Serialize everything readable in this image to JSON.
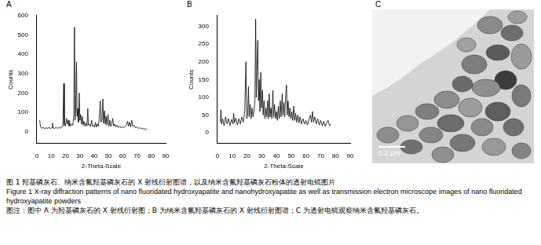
{
  "chart_data": [
    {
      "type": "line",
      "title": "A",
      "x_label": "2-Theta-Scale",
      "y_label": "Counts",
      "color": "#000000",
      "grid": false,
      "xlim": [
        0,
        90
      ],
      "xticks": [
        0,
        10,
        20,
        30,
        40,
        50,
        60,
        70,
        80,
        90
      ],
      "ylim": [
        -60,
        600
      ],
      "yticks": [
        0,
        100,
        200,
        300,
        400,
        500,
        600
      ],
      "x": [
        2,
        2.6,
        3.5,
        4.5,
        5.5,
        6.5,
        7.5,
        8.5,
        9.5,
        10.5,
        10.9,
        11.3,
        12.5,
        13.5,
        14.5,
        15.5,
        16.5,
        17.5,
        18.2,
        18.8,
        19.2,
        20,
        20.8,
        21.2,
        22,
        22.5,
        23.2,
        23.8,
        24.5,
        25.2,
        25.8,
        26.3,
        26.7,
        27.2,
        27.7,
        28.1,
        28.6,
        29,
        29.6,
        30.1,
        30.6,
        31.2,
        31.8,
        32.3,
        33,
        33.6,
        34.3,
        35,
        35.6,
        36,
        36.8,
        37.5,
        38.3,
        38.8,
        39.5,
        40.3,
        41,
        41.6,
        42.4,
        43,
        43.8,
        44.3,
        44.8,
        45.5,
        46.1,
        46.6,
        47.3,
        47.8,
        48.4,
        49,
        49.7,
        50.3,
        51,
        51.6,
        52.4,
        53,
        53.6,
        54.4,
        55.2,
        56,
        57,
        58,
        59,
        60,
        61,
        62,
        62.8,
        63.4,
        64,
        64.8,
        65.5,
        66.3,
        67,
        68,
        69,
        70,
        71,
        72,
        73,
        74,
        75,
        76,
        77
      ],
      "values": [
        60,
        25,
        18,
        25,
        15,
        22,
        18,
        24,
        16,
        22,
        45,
        20,
        18,
        25,
        17,
        23,
        19,
        28,
        30,
        250,
        35,
        30,
        70,
        40,
        60,
        30,
        45,
        30,
        40,
        35,
        90,
        540,
        60,
        120,
        360,
        80,
        120,
        50,
        200,
        60,
        90,
        40,
        80,
        35,
        55,
        30,
        45,
        30,
        120,
        35,
        40,
        28,
        60,
        30,
        35,
        25,
        50,
        25,
        40,
        30,
        90,
        160,
        50,
        60,
        170,
        45,
        110,
        40,
        80,
        35,
        90,
        30,
        60,
        28,
        45,
        70,
        30,
        40,
        25,
        35,
        22,
        30,
        20,
        28,
        22,
        30,
        40,
        55,
        30,
        50,
        25,
        60,
        28,
        35,
        20,
        25,
        18,
        22,
        15,
        20,
        12,
        18,
        10
      ]
    },
    {
      "type": "line",
      "title": "B",
      "x_label": "2-Theta-Scale",
      "y_label": "Counts",
      "color": "#000000",
      "grid": false,
      "xlim": [
        0,
        90
      ],
      "xticks": [
        0,
        10,
        20,
        30,
        40,
        50,
        60,
        70,
        80,
        90
      ],
      "ylim": [
        -30,
        330
      ],
      "yticks": [
        0,
        50,
        100,
        150,
        200,
        250,
        300
      ],
      "x": [
        2,
        2.3,
        2.8,
        3.5,
        4.5,
        5.5,
        6.5,
        7.5,
        8.5,
        9.5,
        10.5,
        11,
        11.5,
        12.5,
        13.5,
        14.5,
        15.5,
        16.5,
        17.5,
        18.5,
        19.3,
        19.8,
        20.5,
        21,
        21.5,
        22.2,
        22.8,
        23.5,
        24.1,
        24.8,
        25.4,
        25.9,
        26.3,
        26.8,
        27.3,
        27.8,
        28.3,
        28.8,
        29.4,
        29.9,
        30.5,
        31,
        31.6,
        32.2,
        32.8,
        33.4,
        34,
        34.5,
        35.1,
        35.6,
        36.3,
        36.9,
        37.6,
        38.1,
        38.7,
        39.3,
        40,
        40.6,
        41.3,
        41.9,
        42.6,
        43.2,
        43.9,
        44.4,
        45,
        45.6,
        46.2,
        46.8,
        47.3,
        47.9,
        48.5,
        49.1,
        49.7,
        50.4,
        51,
        51.7,
        52.3,
        53,
        53.7,
        54.5,
        55.3,
        56,
        57,
        58,
        59,
        60,
        61,
        62,
        63,
        63.7,
        64.4,
        65.1,
        66,
        67,
        68,
        69,
        70,
        71,
        72,
        73,
        74,
        75,
        76,
        77
      ],
      "values": [
        30,
        65,
        25,
        40,
        20,
        45,
        25,
        40,
        20,
        38,
        25,
        55,
        28,
        42,
        22,
        40,
        25,
        45,
        30,
        60,
        200,
        40,
        50,
        130,
        45,
        80,
        40,
        70,
        45,
        60,
        90,
        320,
        100,
        180,
        260,
        90,
        150,
        60,
        170,
        70,
        120,
        50,
        90,
        40,
        70,
        45,
        90,
        40,
        110,
        45,
        70,
        40,
        120,
        45,
        80,
        40,
        60,
        35,
        75,
        40,
        90,
        45,
        110,
        50,
        85,
        45,
        100,
        135,
        50,
        90,
        45,
        70,
        40,
        60,
        35,
        75,
        35,
        55,
        30,
        50,
        28,
        45,
        25,
        40,
        25,
        35,
        22,
        38,
        50,
        30,
        60,
        30,
        45,
        25,
        40,
        22,
        35,
        20,
        32,
        18,
        28,
        35,
        20,
        25
      ]
    }
  ],
  "panel_c": {
    "letter": "C",
    "scale_bar": "0.2 μm"
  },
  "caption": {
    "zh": "图 1   羟基磷灰石、纳米含氟羟基磷灰石的 X 射线衍射图谱，以及纳米含氟羟基磷灰石粉体的透射电镜图片",
    "en": "Figure 1   X-ray diffraction patterns of nano fluoridated hydroxyapatite and nanohydroxyapatite as well as transmission electron microscope images of nano fluoridated hydroxyapatite powders",
    "note": "图注：图中 A 为羟基磷灰石的 X 射线衍射图；B 为纳米含氟羟基磷灰石的 X 射线衍射图谱；C 为透射电镜观察纳米含氟羟基磷灰石。"
  }
}
